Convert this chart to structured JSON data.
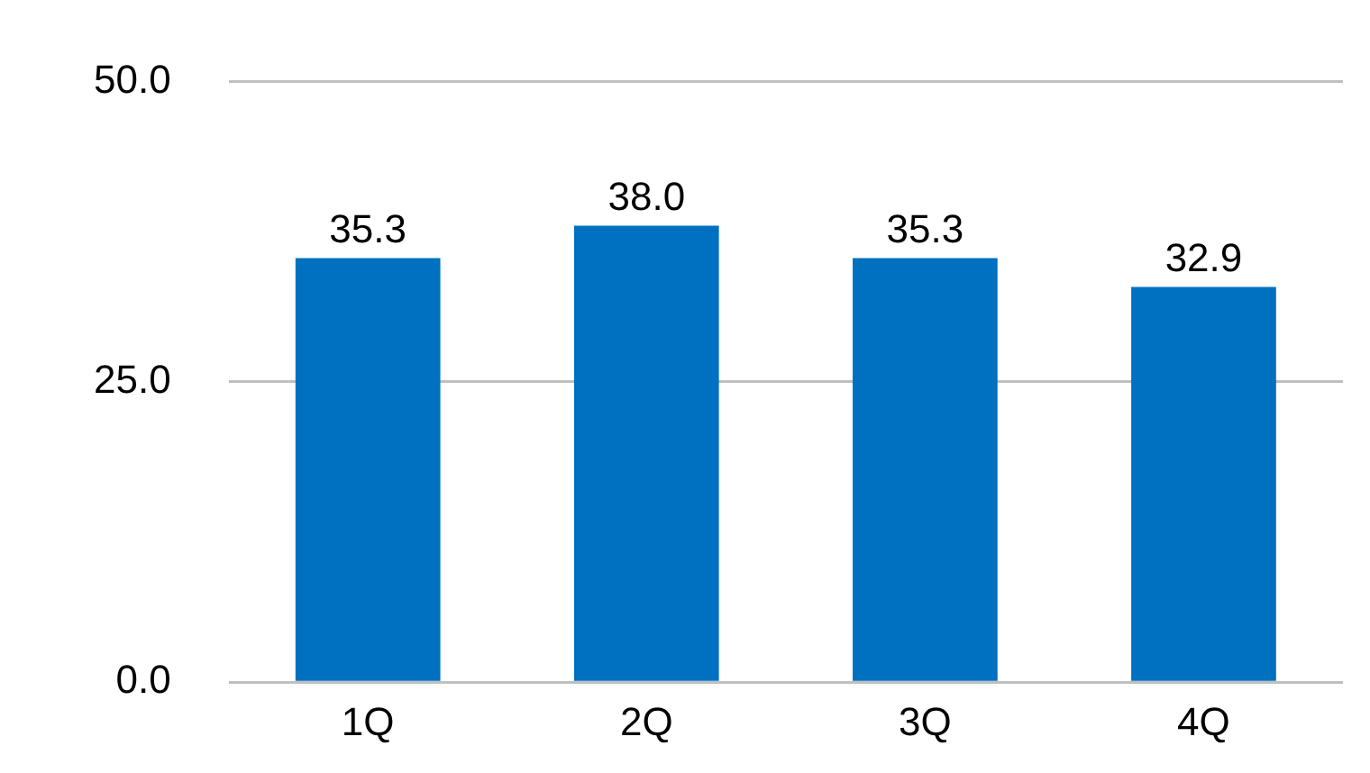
{
  "chart_data": {
    "type": "bar",
    "categories": [
      "1Q",
      "2Q",
      "3Q",
      "4Q"
    ],
    "values": [
      35.3,
      38.0,
      35.3,
      32.9
    ],
    "value_labels": [
      "35.3",
      "38.0",
      "35.3",
      "32.9"
    ],
    "color": "#0070c0",
    "ylim": [
      0,
      50
    ],
    "yticks": [
      {
        "value": 0,
        "label": "0.0"
      },
      {
        "value": 25,
        "label": "25.0"
      },
      {
        "value": 50,
        "label": "50.0"
      }
    ],
    "grid": "y",
    "legend": false
  }
}
